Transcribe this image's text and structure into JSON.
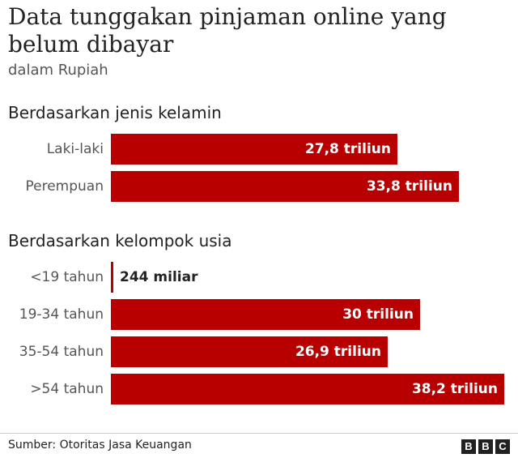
{
  "header": {
    "title": "Data tunggakan pinjaman online yang belum dibayar",
    "subtitle": "dalam Rupiah"
  },
  "footer": {
    "source": "Sumber: Otoritas Jasa Keuangan",
    "logo": [
      "B",
      "B",
      "C"
    ]
  },
  "colors": {
    "bar": "#b80000"
  },
  "chart_data": [
    {
      "type": "bar",
      "orientation": "horizontal",
      "title": "Berdasarkan jenis kelamin",
      "unit": "triliun Rupiah",
      "categories": [
        "Laki-laki",
        "Perempuan"
      ],
      "values": [
        27.8,
        33.8
      ],
      "value_labels": [
        "27,8 triliun",
        "33,8 triliun"
      ]
    },
    {
      "type": "bar",
      "orientation": "horizontal",
      "title": "Berdasarkan kelompok usia",
      "unit": "triliun Rupiah",
      "categories": [
        "<19 tahun",
        "19-34 tahun",
        "35-54 tahun",
        ">54 tahun"
      ],
      "values": [
        0.244,
        30,
        26.9,
        38.2
      ],
      "value_labels": [
        "244 miliar",
        "30 triliun",
        "26,9 triliun",
        "38,2 triliun"
      ]
    }
  ]
}
